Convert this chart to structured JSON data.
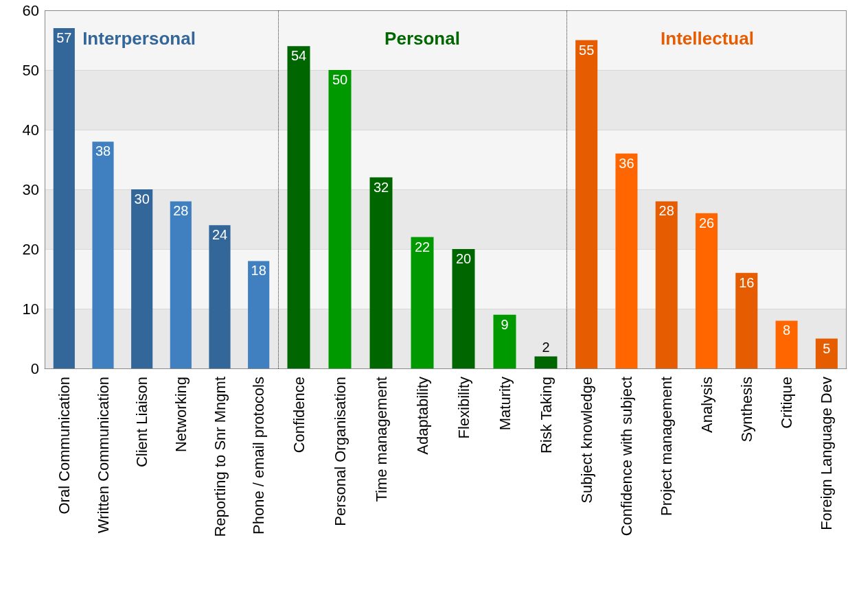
{
  "chart_data": [
    {
      "type": "bar",
      "title": "Interpersonal",
      "categories": [
        "Oral Communication",
        "Written Communication",
        "Client Liaison",
        "Networking",
        "Reporting to Snr Mngmt",
        "Phone / email protocols"
      ],
      "values": [
        57,
        38,
        30,
        28,
        24,
        18
      ],
      "colors": [
        "#336699",
        "#4080c0",
        "#336699",
        "#4080c0",
        "#336699",
        "#4080c0"
      ],
      "ylim": [
        0,
        60
      ],
      "yticks": [
        0,
        10,
        20,
        30,
        40,
        50,
        60
      ],
      "grid": "y",
      "data_labels": true
    },
    {
      "type": "bar",
      "title": "Personal",
      "categories": [
        "Confidence",
        "Personal Organisation",
        "Time management",
        "Adaptability",
        "Flexibility",
        "Maturity",
        "Risk Taking"
      ],
      "values": [
        54,
        50,
        32,
        22,
        20,
        9,
        2
      ],
      "colors": [
        "#006600",
        "#009900",
        "#006600",
        "#009900",
        "#006600",
        "#009900",
        "#006600"
      ],
      "ylim": [
        0,
        60
      ],
      "yticks": [
        0,
        10,
        20,
        30,
        40,
        50,
        60
      ],
      "grid": "y",
      "data_labels": true,
      "tick_labels": "x"
    },
    {
      "type": "bar",
      "title": "Intellectual",
      "categories": [
        "Subject knowledge",
        "Confidence with subject",
        "Project management",
        "Analysis",
        "Synthesis",
        "Critique",
        "Foreign Language Dev"
      ],
      "values": [
        55,
        36,
        28,
        26,
        16,
        8,
        5
      ],
      "colors": [
        "#e65c00",
        "#ff6600",
        "#e65c00",
        "#ff6600",
        "#e65c00",
        "#ff6600",
        "#e65c00"
      ],
      "ylim": [
        0,
        60
      ],
      "yticks": [
        0,
        10,
        20,
        30,
        40,
        50,
        60
      ],
      "grid": "y",
      "data_labels": true,
      "tick_labels": "x"
    }
  ]
}
